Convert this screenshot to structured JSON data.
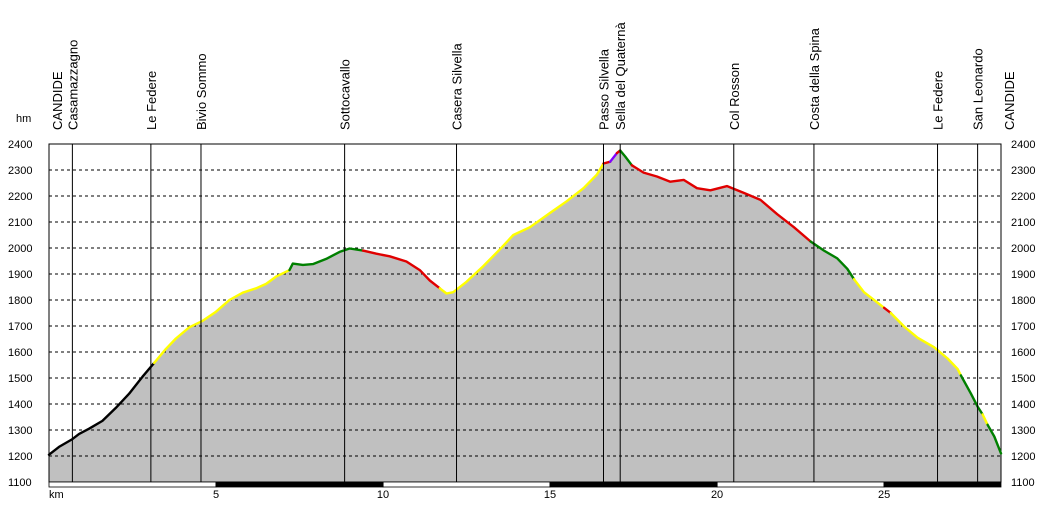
{
  "chart_data": {
    "type": "area",
    "x_unit": "km",
    "y_unit": "hm",
    "xlim": [
      0,
      28.5
    ],
    "ylim": [
      1100,
      2400
    ],
    "x_ticks": [
      5,
      10,
      15,
      20,
      25
    ],
    "y_ticks": [
      1100,
      1200,
      1300,
      1400,
      1500,
      1600,
      1700,
      1800,
      1900,
      2000,
      2100,
      2200,
      2300,
      2400
    ],
    "grid": true,
    "fill_color": "#c0c0c0",
    "segment_colors": {
      "black": "#000000",
      "yellow": "#ffff00",
      "green": "#008000",
      "red": "#e00000",
      "purple": "#8000ff"
    },
    "segments": [
      {
        "color": "black",
        "points": [
          [
            0,
            1205
          ],
          [
            0.3,
            1235
          ],
          [
            0.7,
            1265
          ],
          [
            0.9,
            1285
          ],
          [
            1.2,
            1305
          ],
          [
            1.6,
            1335
          ],
          [
            2.0,
            1385
          ],
          [
            2.4,
            1440
          ],
          [
            2.8,
            1505
          ],
          [
            3.15,
            1558
          ]
        ]
      },
      {
        "color": "yellow",
        "points": [
          [
            3.15,
            1558
          ],
          [
            3.5,
            1612
          ],
          [
            3.8,
            1652
          ],
          [
            4.2,
            1695
          ],
          [
            4.6,
            1720
          ],
          [
            5.0,
            1755
          ],
          [
            5.4,
            1800
          ],
          [
            5.8,
            1828
          ],
          [
            6.2,
            1845
          ],
          [
            6.5,
            1862
          ],
          [
            6.8,
            1890
          ],
          [
            7.2,
            1915
          ]
        ]
      },
      {
        "color": "green",
        "points": [
          [
            7.2,
            1915
          ],
          [
            7.3,
            1940
          ],
          [
            7.6,
            1935
          ],
          [
            7.9,
            1938
          ],
          [
            8.3,
            1958
          ],
          [
            8.7,
            1985
          ],
          [
            9.0,
            1998
          ],
          [
            9.4,
            1990
          ]
        ]
      },
      {
        "color": "red",
        "points": [
          [
            9.4,
            1990
          ],
          [
            9.8,
            1978
          ],
          [
            10.2,
            1968
          ],
          [
            10.7,
            1948
          ],
          [
            11.1,
            1915
          ],
          [
            11.4,
            1875
          ],
          [
            11.7,
            1845
          ]
        ]
      },
      {
        "color": "yellow",
        "points": [
          [
            11.7,
            1845
          ],
          [
            11.9,
            1825
          ],
          [
            12.1,
            1830
          ],
          [
            12.5,
            1870
          ],
          [
            13.0,
            1930
          ],
          [
            13.5,
            1995
          ],
          [
            13.9,
            2050
          ],
          [
            14.4,
            2080
          ],
          [
            15.0,
            2135
          ],
          [
            15.5,
            2180
          ],
          [
            16.0,
            2230
          ],
          [
            16.4,
            2282
          ],
          [
            16.6,
            2325
          ]
        ]
      },
      {
        "color": "red",
        "points": [
          [
            16.6,
            2325
          ],
          [
            16.8,
            2332
          ]
        ]
      },
      {
        "color": "purple",
        "points": [
          [
            16.8,
            2332
          ],
          [
            17.0,
            2365
          ]
        ]
      },
      {
        "color": "red",
        "points": [
          [
            17.0,
            2365
          ],
          [
            17.1,
            2375
          ]
        ]
      },
      {
        "color": "green",
        "points": [
          [
            17.1,
            2375
          ],
          [
            17.25,
            2352
          ],
          [
            17.45,
            2318
          ]
        ]
      },
      {
        "color": "red",
        "points": [
          [
            17.45,
            2318
          ],
          [
            17.8,
            2290
          ],
          [
            18.2,
            2275
          ],
          [
            18.6,
            2255
          ],
          [
            19.0,
            2262
          ],
          [
            19.4,
            2230
          ],
          [
            19.8,
            2222
          ],
          [
            20.3,
            2238
          ],
          [
            20.8,
            2212
          ],
          [
            21.3,
            2185
          ],
          [
            21.8,
            2130
          ],
          [
            22.3,
            2080
          ],
          [
            22.8,
            2025
          ]
        ]
      },
      {
        "color": "green",
        "points": [
          [
            22.8,
            2025
          ],
          [
            23.2,
            1990
          ],
          [
            23.6,
            1960
          ],
          [
            23.9,
            1920
          ],
          [
            24.1,
            1880
          ]
        ]
      },
      {
        "color": "yellow",
        "points": [
          [
            24.1,
            1880
          ],
          [
            24.4,
            1830
          ],
          [
            24.8,
            1790
          ],
          [
            25.0,
            1770
          ]
        ]
      },
      {
        "color": "red",
        "points": [
          [
            25.0,
            1770
          ],
          [
            25.2,
            1750
          ]
        ]
      },
      {
        "color": "yellow",
        "points": [
          [
            25.2,
            1750
          ],
          [
            25.6,
            1698
          ],
          [
            26.0,
            1655
          ],
          [
            26.5,
            1618
          ],
          [
            26.9,
            1575
          ],
          [
            27.2,
            1535
          ],
          [
            27.3,
            1510
          ]
        ]
      },
      {
        "color": "green",
        "points": [
          [
            27.3,
            1510
          ],
          [
            27.6,
            1440
          ],
          [
            27.8,
            1390
          ],
          [
            27.95,
            1360
          ]
        ]
      },
      {
        "color": "yellow",
        "points": [
          [
            27.95,
            1360
          ],
          [
            28.1,
            1320
          ]
        ]
      },
      {
        "color": "green",
        "points": [
          [
            28.1,
            1320
          ],
          [
            28.3,
            1275
          ],
          [
            28.5,
            1210
          ]
        ]
      }
    ],
    "waypoints": [
      {
        "label": "CANDIDE",
        "km": 0,
        "line": false
      },
      {
        "label": "Casamazzagno",
        "km": 0.7,
        "line": true
      },
      {
        "label": "Le Federe",
        "km": 3.05,
        "line": true
      },
      {
        "label": "Bivio Sommo",
        "km": 4.55,
        "line": true
      },
      {
        "label": "Sottocavallo",
        "km": 8.85,
        "line": true
      },
      {
        "label": "Casera Silvella",
        "km": 12.2,
        "line": true
      },
      {
        "label": "Passo Silvella",
        "km": 16.6,
        "line": true
      },
      {
        "label": "Sella del Quaternà",
        "km": 17.1,
        "line": true
      },
      {
        "label": "Col Rosson",
        "km": 20.5,
        "line": true
      },
      {
        "label": "Costa della Spina",
        "km": 22.9,
        "line": true
      },
      {
        "label": "Le Federe",
        "km": 26.6,
        "line": true
      },
      {
        "label": "San Leonardo",
        "km": 27.8,
        "line": true
      },
      {
        "label": "CANDIDE",
        "km": 28.5,
        "line": false
      }
    ]
  }
}
